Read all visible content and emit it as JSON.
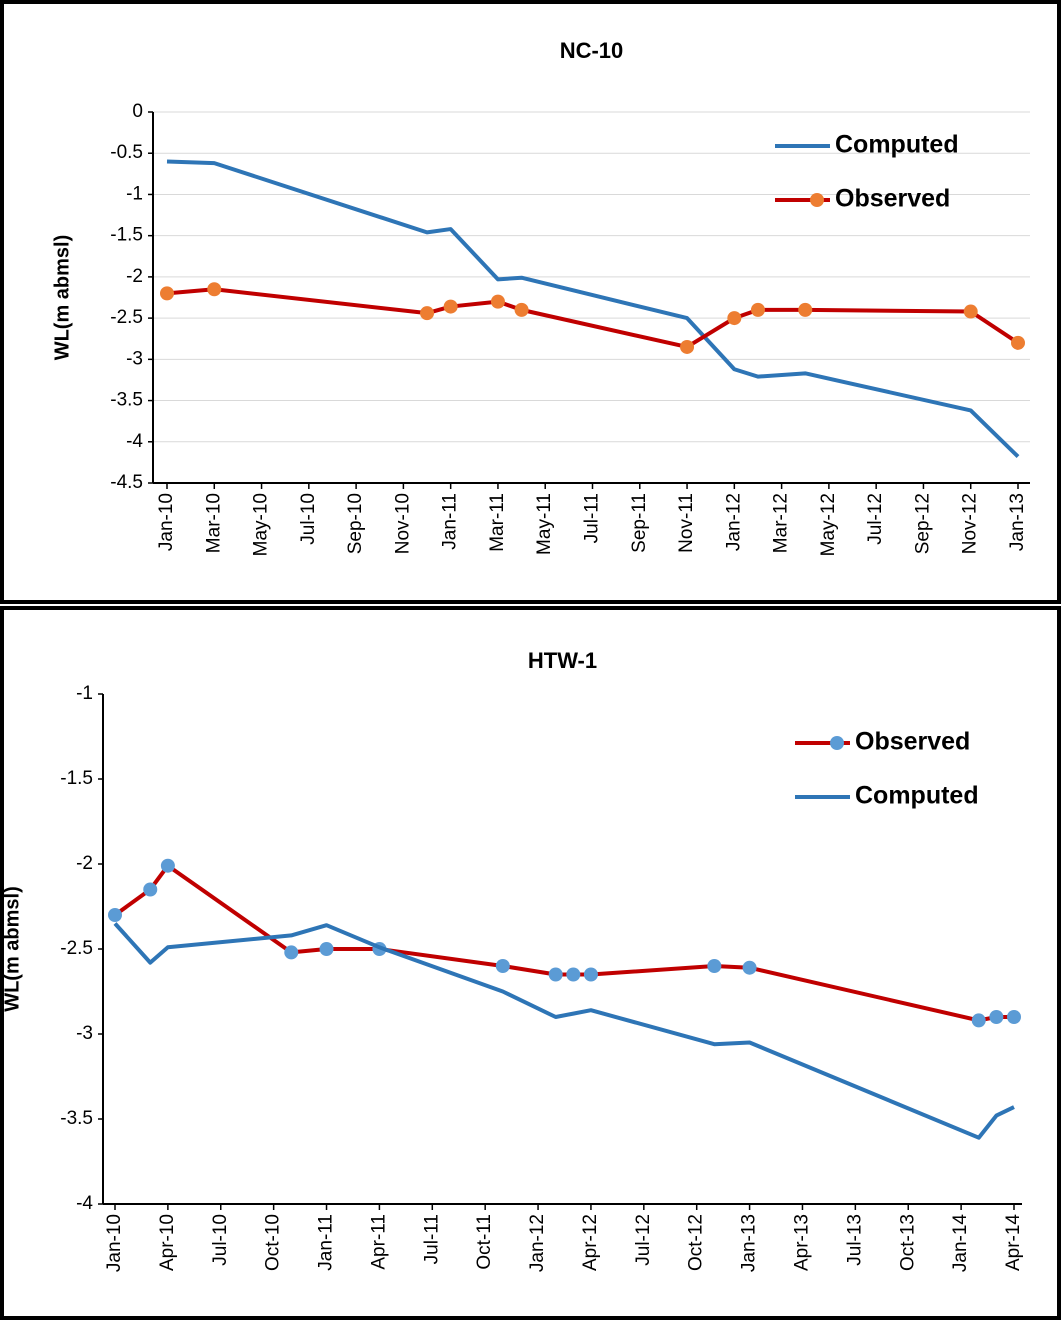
{
  "chart_data": [
    {
      "type": "line",
      "title": "NC-10",
      "y_label": "WL(m abmsl)",
      "x": [
        "2010-01",
        "2010-03",
        "2010-12",
        "2011-01",
        "2011-03",
        "2011-04",
        "2011-11",
        "2012-01",
        "2012-02",
        "2012-04",
        "2012-11",
        "2013-01"
      ],
      "series": [
        {
          "name": "Computed",
          "color": "#2e75b6",
          "values": [
            -0.6,
            -0.62,
            -1.46,
            -1.42,
            -2.03,
            -2.01,
            -2.5,
            -3.12,
            -3.21,
            -3.17,
            -3.62,
            -4.18
          ]
        },
        {
          "name": "Observed",
          "color": "#c00000",
          "marker_color": "#ed7d31",
          "values": [
            -2.2,
            -2.15,
            -2.44,
            -2.36,
            -2.3,
            -2.4,
            -2.85,
            -2.5,
            -2.4,
            -2.4,
            -2.42,
            -2.8
          ]
        }
      ],
      "xlim": [
        "2010-01",
        "2013-01"
      ],
      "xticks": [
        {
          "value": "2010-01",
          "label": "Jan-10"
        },
        {
          "value": "2010-03",
          "label": "Mar-10"
        },
        {
          "value": "2010-05",
          "label": "May-10"
        },
        {
          "value": "2010-07",
          "label": "Jul-10"
        },
        {
          "value": "2010-09",
          "label": "Sep-10"
        },
        {
          "value": "2010-11",
          "label": "Nov-10"
        },
        {
          "value": "2011-01",
          "label": "Jan-11"
        },
        {
          "value": "2011-03",
          "label": "Mar-11"
        },
        {
          "value": "2011-05",
          "label": "May-11"
        },
        {
          "value": "2011-07",
          "label": "Jul-11"
        },
        {
          "value": "2011-09",
          "label": "Sep-11"
        },
        {
          "value": "2011-11",
          "label": "Nov-11"
        },
        {
          "value": "2012-01",
          "label": "Jan-12"
        },
        {
          "value": "2012-03",
          "label": "Mar-12"
        },
        {
          "value": "2012-05",
          "label": "May-12"
        },
        {
          "value": "2012-07",
          "label": "Jul-12"
        },
        {
          "value": "2012-09",
          "label": "Sep-12"
        },
        {
          "value": "2012-11",
          "label": "Nov-12"
        },
        {
          "value": "2013-01",
          "label": "Jan-13"
        }
      ],
      "ylim": [
        -4.5,
        0
      ],
      "yticks": [
        0,
        -0.5,
        -1,
        -1.5,
        -2,
        -2.5,
        -3,
        -3.5,
        -4,
        -4.5
      ],
      "grid": true
    },
    {
      "type": "line",
      "title": "HTW-1",
      "y_label": "WL(m abmsl)",
      "x": [
        "2010-01",
        "2010-03",
        "2010-04",
        "2010-11",
        "2011-01",
        "2011-04",
        "2011-11",
        "2012-02",
        "2012-03",
        "2012-04",
        "2012-11",
        "2013-01",
        "2014-02",
        "2014-03",
        "2014-04"
      ],
      "series": [
        {
          "name": "Observed",
          "color": "#c00000",
          "marker_color": "#5b9bd5",
          "values": [
            -2.3,
            -2.15,
            -2.01,
            -2.52,
            -2.5,
            -2.5,
            -2.6,
            -2.65,
            -2.65,
            -2.65,
            -2.6,
            -2.61,
            -2.92,
            -2.9,
            -2.9
          ]
        },
        {
          "name": "Computed",
          "color": "#2e75b6",
          "values": [
            -2.35,
            -2.58,
            -2.49,
            -2.42,
            -2.36,
            -2.49,
            -2.75,
            -2.9,
            -2.88,
            -2.86,
            -3.06,
            -3.05,
            -3.61,
            -3.48,
            -3.43
          ]
        }
      ],
      "xlim": [
        "2010-01",
        "2014-04"
      ],
      "xticks": [
        {
          "value": "2010-01",
          "label": "Jan-10"
        },
        {
          "value": "2010-04",
          "label": "Apr-10"
        },
        {
          "value": "2010-07",
          "label": "Jul-10"
        },
        {
          "value": "2010-10",
          "label": "Oct-10"
        },
        {
          "value": "2011-01",
          "label": "Jan-11"
        },
        {
          "value": "2011-04",
          "label": "Apr-11"
        },
        {
          "value": "2011-07",
          "label": "Jul-11"
        },
        {
          "value": "2011-10",
          "label": "Oct-11"
        },
        {
          "value": "2012-01",
          "label": "Jan-12"
        },
        {
          "value": "2012-04",
          "label": "Apr-12"
        },
        {
          "value": "2012-07",
          "label": "Jul-12"
        },
        {
          "value": "2012-10",
          "label": "Oct-12"
        },
        {
          "value": "2013-01",
          "label": "Jan-13"
        },
        {
          "value": "2013-04",
          "label": "Apr-13"
        },
        {
          "value": "2013-07",
          "label": "Jul-13"
        },
        {
          "value": "2013-10",
          "label": "Oct-13"
        },
        {
          "value": "2014-01",
          "label": "Jan-14"
        },
        {
          "value": "2014-04",
          "label": "Apr-14"
        }
      ],
      "ylim": [
        -4,
        -1
      ],
      "yticks": [
        -1,
        -1.5,
        -2,
        -2.5,
        -3,
        -3.5,
        -4
      ],
      "grid": false
    }
  ]
}
